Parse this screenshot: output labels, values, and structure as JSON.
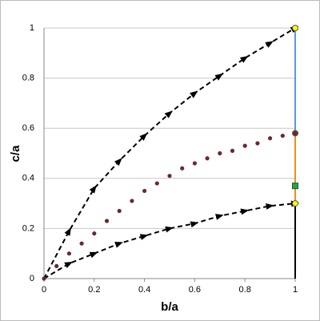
{
  "chart_data": {
    "type": "scatter",
    "x_label": "b/a",
    "y_label": "c/a",
    "xlim": [
      0,
      1
    ],
    "ylim": [
      0,
      1
    ],
    "xticks": [
      0,
      0.2,
      0.4,
      0.6,
      0.8,
      1
    ],
    "yticks": [
      0,
      0.2,
      0.4,
      0.6,
      0.8,
      1
    ],
    "grid": true,
    "series": [
      {
        "style": "dashed-arrow",
        "color": "#000000",
        "x": [
          0,
          0.1,
          0.2,
          0.3,
          0.4,
          0.5,
          0.6,
          0.7,
          0.8,
          0.9,
          1
        ],
        "values": [
          0,
          0.19,
          0.36,
          0.47,
          0.57,
          0.66,
          0.74,
          0.81,
          0.88,
          0.94,
          1
        ]
      },
      {
        "style": "dashed-arrow",
        "color": "#000000",
        "x": [
          0,
          0.1,
          0.2,
          0.3,
          0.4,
          0.5,
          0.6,
          0.7,
          0.8,
          0.9,
          1
        ],
        "values": [
          0,
          0.06,
          0.1,
          0.14,
          0.17,
          0.2,
          0.22,
          0.25,
          0.27,
          0.29,
          0.3
        ]
      },
      {
        "style": "dots",
        "color": "#6b2a2a",
        "x": [
          0,
          0.05,
          0.1,
          0.15,
          0.2,
          0.25,
          0.3,
          0.35,
          0.4,
          0.45,
          0.5,
          0.55,
          0.6,
          0.65,
          0.7,
          0.75,
          0.8,
          0.85,
          0.9,
          0.95,
          1
        ],
        "values": [
          0,
          0.05,
          0.1,
          0.14,
          0.18,
          0.23,
          0.27,
          0.31,
          0.35,
          0.38,
          0.41,
          0.44,
          0.46,
          0.48,
          0.5,
          0.51,
          0.53,
          0.54,
          0.56,
          0.57,
          0.58
        ]
      }
    ],
    "segments": [
      {
        "x": 1,
        "from": 0,
        "to": 0.3,
        "color": "#000000"
      },
      {
        "x": 1,
        "from": 0.3,
        "to": 0.58,
        "color": "#f08c1e"
      },
      {
        "x": 1,
        "from": 0.58,
        "to": 1,
        "color": "#5b9bd5"
      }
    ],
    "markers": [
      {
        "x": 1,
        "y": 1,
        "shape": "circle",
        "color": "#ffff00"
      },
      {
        "x": 1,
        "y": 0.3,
        "shape": "circle",
        "color": "#ffff00"
      },
      {
        "x": 1,
        "y": 0.37,
        "shape": "square",
        "color": "#2e9e4f"
      },
      {
        "x": 1,
        "y": 0.58,
        "shape": "circle",
        "color": "#6b2a2a"
      }
    ]
  }
}
